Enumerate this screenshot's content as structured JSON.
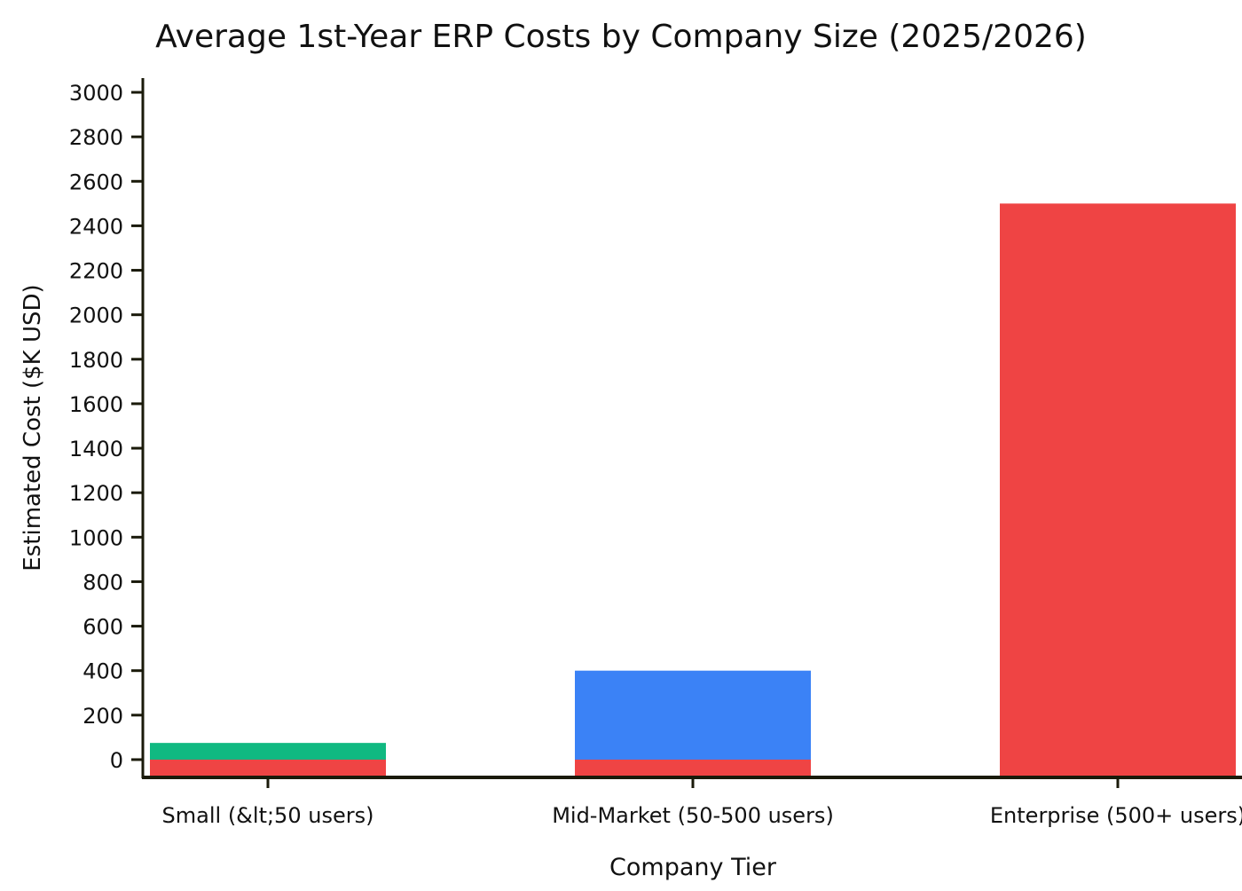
{
  "chart_data": {
    "type": "bar",
    "title": "Average 1st-Year ERP Costs by Company Size (2025/2026)",
    "xlabel": "Company Tier",
    "ylabel": "Estimated Cost ($K USD)",
    "categories": [
      "Small (&lt;50 users)",
      "Mid-Market (50-500 users)",
      "Enterprise (500+ users)"
    ],
    "series": [
      {
        "color": "#10b981",
        "values": [
          75,
          0,
          0
        ]
      },
      {
        "color": "#3b82f6",
        "values": [
          0,
          400,
          0
        ]
      },
      {
        "color": "#ef4444",
        "values": [
          0,
          0,
          2500
        ]
      }
    ],
    "ylim": [
      -76,
      3064
    ],
    "yticks": [
      0,
      200,
      400,
      600,
      800,
      1000,
      1200,
      1400,
      1600,
      1800,
      2000,
      2200,
      2400,
      2600,
      2800,
      3000
    ],
    "grid": false,
    "legend": "none"
  }
}
